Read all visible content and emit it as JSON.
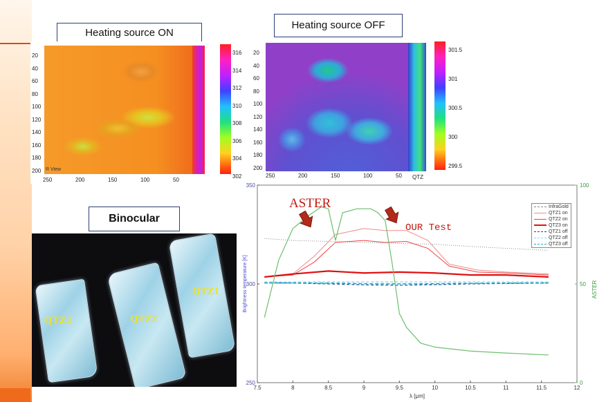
{
  "labels": {
    "heating_on": "Heating source ON",
    "heating_off": "Heating source OFF",
    "binocular": "Binocular",
    "aster": "ASTER",
    "our_test": "OUR Test",
    "r_view": "R View",
    "qtz_tag": "QTZ"
  },
  "map_on": {
    "yticks": [
      "20",
      "40",
      "60",
      "80",
      "100",
      "120",
      "140",
      "160",
      "180",
      "200"
    ],
    "xticks": [
      "250",
      "200",
      "150",
      "100",
      "50"
    ],
    "cbar_ticks": [
      "316",
      "314",
      "312",
      "310",
      "308",
      "306",
      "304",
      "302"
    ]
  },
  "map_off": {
    "yticks": [
      "20",
      "40",
      "60",
      "80",
      "100",
      "120",
      "140",
      "160",
      "180",
      "200"
    ],
    "xticks": [
      "250",
      "200",
      "150",
      "100",
      "50"
    ],
    "cbar_ticks": [
      "301.5",
      "301",
      "300.5",
      "300",
      "299.5"
    ]
  },
  "binocular_labels": [
    "QTZ1",
    "QTZ2",
    "QTZ3"
  ],
  "colors": {
    "aster_green": "#6cbf6c",
    "accent_orange": "#ef6a1a",
    "arrow_red": "#b22a1a",
    "label_yellow": "#f2e21a"
  },
  "chart_data": {
    "type": "line",
    "xlabel": "λ [μm]",
    "ylabel": "Brightness temperature [K]",
    "y2label": "ASTER",
    "x_ticks": [
      "7.5",
      "8",
      "8.5",
      "9",
      "9.5",
      "10",
      "10.5",
      "11",
      "11.5",
      "12"
    ],
    "y_ticks": [
      "250",
      "300",
      "350"
    ],
    "y2_ticks": [
      "0",
      "50",
      "100"
    ],
    "xlim": [
      7.5,
      12
    ],
    "ylim": [
      250,
      350
    ],
    "y2lim": [
      0,
      100
    ],
    "legend": [
      "InfraGold",
      "QTZ1 on",
      "QTZ2 on",
      "QTZ3 on",
      "QTZ1 off",
      "QTZ2 off",
      "QTZ3 off"
    ],
    "series": [
      {
        "name": "InfraGold",
        "color": "#888888",
        "dash": "1,2",
        "width": 1,
        "axis": "left",
        "x": [
          7.6,
          8,
          8.5,
          9,
          9.5,
          10,
          10.5,
          11,
          11.6
        ],
        "y": [
          323,
          322,
          321.5,
          321,
          320.5,
          320,
          319,
          318,
          317
        ]
      },
      {
        "name": "QTZ1 on",
        "color": "#f08a8a",
        "dash": "",
        "width": 1,
        "axis": "left",
        "x": [
          7.6,
          8,
          8.3,
          8.6,
          9,
          9.3,
          9.6,
          9.9,
          10.2,
          10.6,
          11,
          11.6
        ],
        "y": [
          303.5,
          305,
          314,
          325,
          328,
          327,
          327,
          322,
          310,
          307,
          306,
          305
        ]
      },
      {
        "name": "QTZ2 on",
        "color": "#f04040",
        "dash": "",
        "width": 1,
        "axis": "left",
        "x": [
          7.6,
          8,
          8.3,
          8.6,
          9,
          9.3,
          9.6,
          9.9,
          10.2,
          10.6,
          11,
          11.6
        ],
        "y": [
          303.5,
          304.5,
          311,
          321,
          322,
          321,
          321.5,
          318,
          309,
          306,
          305.5,
          304.5
        ]
      },
      {
        "name": "QTZ3 on",
        "color": "#e01010",
        "dash": "",
        "width": 2.2,
        "axis": "left",
        "x": [
          7.6,
          8,
          8.5,
          9,
          9.5,
          10,
          10.5,
          11,
          11.6
        ],
        "y": [
          303.5,
          305,
          306.5,
          305.5,
          306,
          305.5,
          304.5,
          304.5,
          303.5
        ]
      },
      {
        "name": "QTZ1 off",
        "color": "#1a4a88",
        "dash": "4,3",
        "width": 1.2,
        "axis": "left",
        "x": [
          7.6,
          8,
          8.5,
          9,
          9.5,
          10,
          10.5,
          11,
          11.6
        ],
        "y": [
          300.5,
          300.4,
          300,
          299.5,
          299.3,
          299.6,
          300,
          300.2,
          300.4
        ]
      },
      {
        "name": "QTZ2 off",
        "color": "#7fd8f0",
        "dash": "4,3",
        "width": 1.2,
        "axis": "left",
        "x": [
          7.6,
          8,
          8.5,
          9,
          9.5,
          10,
          10.5,
          11,
          11.6
        ],
        "y": [
          301,
          301,
          301,
          301,
          301,
          301,
          301,
          301,
          301
        ]
      },
      {
        "name": "QTZ3 off",
        "color": "#1aa8c8",
        "dash": "5,3",
        "width": 1.6,
        "axis": "left",
        "x": [
          7.6,
          8,
          8.5,
          9,
          9.5,
          10,
          10.5,
          11,
          11.6
        ],
        "y": [
          300.5,
          300.5,
          300.4,
          300.1,
          300,
          300.1,
          300.3,
          300.4,
          300.5
        ]
      },
      {
        "name": "ASTER",
        "color": "#6cbf6c",
        "dash": "",
        "width": 1.2,
        "axis": "right",
        "x": [
          7.6,
          7.8,
          8.0,
          8.2,
          8.4,
          8.5,
          8.55,
          8.6,
          8.7,
          8.9,
          9.1,
          9.2,
          9.3,
          9.4,
          9.5,
          9.6,
          9.8,
          10,
          10.5,
          11,
          11.6
        ],
        "y": [
          33,
          62,
          78,
          84,
          89,
          88,
          80,
          72,
          86,
          88,
          88,
          86,
          82,
          60,
          35,
          28,
          20,
          18,
          16,
          15,
          14
        ]
      }
    ]
  }
}
